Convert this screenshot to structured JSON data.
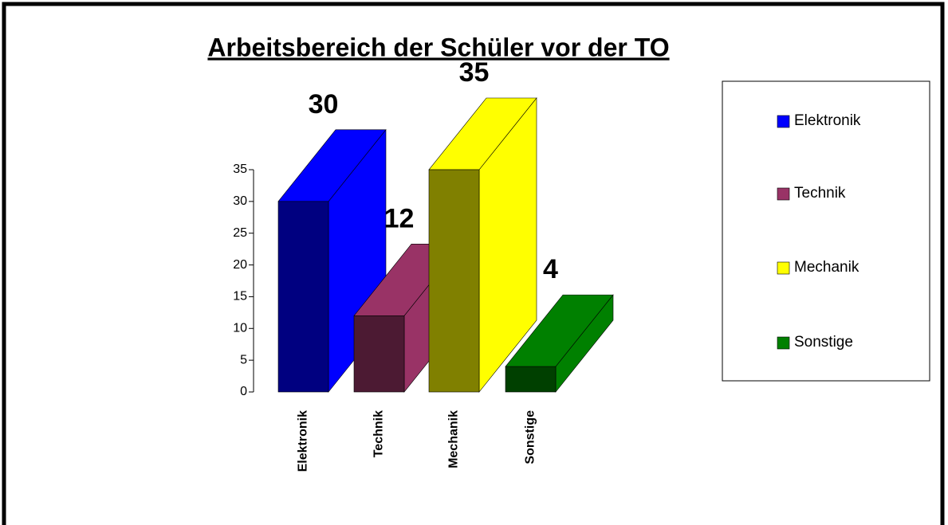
{
  "chart_data": {
    "type": "bar3d",
    "title": "Arbeitsbereich der Schüler vor der TO",
    "categories": [
      "Elektronik",
      "Technik",
      "Mechanik",
      "Sonstige"
    ],
    "values": [
      30,
      12,
      35,
      4
    ],
    "colors": [
      "#0000ff",
      "#993366",
      "#ffff00",
      "#008000"
    ],
    "ylim": [
      0,
      35
    ],
    "yticks": [
      0,
      5,
      10,
      15,
      20,
      25,
      30,
      35
    ],
    "legend": "right"
  }
}
